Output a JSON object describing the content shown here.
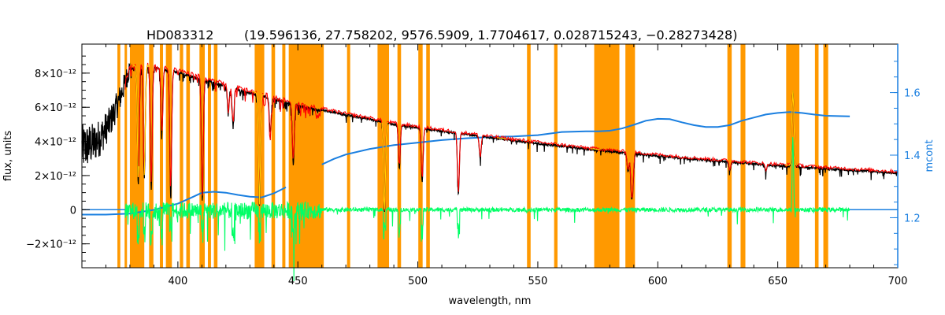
{
  "chart_data": {
    "type": "line",
    "title_object": "HD083312",
    "title_params": "(19.596136, 27.758202, 9576.5909, 1.7704617, 0.028715243, −0.28273428)",
    "xlabel": "wavelength, nm",
    "ylabel": "flux, units",
    "y2label": "mcont",
    "xlim": [
      360,
      700
    ],
    "ylim": [
      -3.4e-12,
      9.7e-12
    ],
    "y2lim": [
      1.04,
      1.755
    ],
    "x_ticks": [
      400,
      450,
      500,
      550,
      600,
      650,
      700
    ],
    "y_ticks": [
      {
        "value": -2e-12,
        "label": "−2×10⁻¹²"
      },
      {
        "value": 0,
        "label": "0"
      },
      {
        "value": 2e-12,
        "label": "2×10⁻¹²"
      },
      {
        "value": 4e-12,
        "label": "4×10⁻¹²"
      },
      {
        "value": 6e-12,
        "label": "6×10⁻¹²"
      },
      {
        "value": 8e-12,
        "label": "8×10⁻¹²"
      }
    ],
    "y2_ticks": [
      1.2,
      1.4,
      1.6
    ],
    "colors": {
      "observed": "#000000",
      "model": "#ff0000",
      "model_highlight": "#ffd000",
      "residual": "#00ff66",
      "mcont": "#1a7fe0",
      "masks": "#ff9900"
    },
    "masked_regions": [
      [
        374.8,
        376.0
      ],
      [
        377.8,
        378.8
      ],
      [
        380.0,
        386.0
      ],
      [
        388.0,
        389.8
      ],
      [
        392.5,
        393.8
      ],
      [
        395.0,
        397.5
      ],
      [
        400.8,
        402.2
      ],
      [
        403.5,
        405.0
      ],
      [
        409.0,
        411.2
      ],
      [
        412.5,
        413.8
      ],
      [
        415.0,
        416.5
      ],
      [
        432.0,
        436.0
      ],
      [
        439.0,
        440.5
      ],
      [
        443.5,
        444.8
      ],
      [
        446.2,
        460.8
      ],
      [
        470.5,
        471.8
      ],
      [
        483.2,
        488.0
      ],
      [
        491.5,
        493.0
      ],
      [
        500.2,
        502.0
      ],
      [
        503.5,
        505.0
      ],
      [
        545.5,
        547.0
      ],
      [
        556.8,
        558.2
      ],
      [
        573.5,
        584.0
      ],
      [
        586.5,
        590.5
      ],
      [
        629.0,
        630.8
      ],
      [
        634.5,
        636.5
      ],
      [
        653.5,
        659.0
      ],
      [
        665.5,
        667.0
      ],
      [
        669.0,
        671.0
      ]
    ],
    "mcont_segments": [
      {
        "x": [
          360,
          370,
          380,
          390,
          400,
          405,
          410,
          415,
          420,
          425,
          430,
          435,
          440,
          445
        ],
        "y": [
          1.21,
          1.21,
          1.213,
          1.225,
          1.245,
          1.262,
          1.28,
          1.283,
          1.28,
          1.273,
          1.267,
          1.265,
          1.278,
          1.297
        ]
      },
      {
        "x": [
          460,
          465,
          470,
          480,
          490,
          500,
          510,
          520,
          530,
          540,
          550,
          560,
          570,
          575,
          580,
          585,
          590,
          595,
          600,
          605,
          610,
          615,
          620,
          625,
          630,
          635,
          640,
          645,
          650,
          655,
          660,
          665,
          670,
          675,
          680
        ],
        "y": [
          1.37,
          1.388,
          1.402,
          1.42,
          1.432,
          1.44,
          1.448,
          1.454,
          1.458,
          1.46,
          1.464,
          1.474,
          1.476,
          1.476,
          1.478,
          1.485,
          1.497,
          1.51,
          1.516,
          1.515,
          1.505,
          1.496,
          1.49,
          1.49,
          1.496,
          1.51,
          1.52,
          1.53,
          1.535,
          1.538,
          1.535,
          1.53,
          1.526,
          1.525,
          1.524
        ]
      }
    ],
    "continuum_flux": {
      "x": [
        360,
        365,
        368,
        372,
        376,
        380,
        385,
        390,
        400,
        410,
        420,
        430,
        440,
        450,
        460,
        470,
        480,
        490,
        500,
        510,
        520,
        530,
        540,
        550,
        560,
        570,
        580,
        590,
        600,
        610,
        620,
        630,
        640,
        650,
        660,
        670,
        680,
        690,
        700
      ],
      "y": [
        3.6e-12,
        3.9e-12,
        4.3e-12,
        5.2e-12,
        6.6e-12,
        8.3e-12,
        8.5e-12,
        8.4e-12,
        8.1e-12,
        7.7e-12,
        7.3e-12,
        6.9e-12,
        6.55e-12,
        6.15e-12,
        5.85e-12,
        5.55e-12,
        5.3e-12,
        5e-12,
        4.8e-12,
        4.6e-12,
        4.42e-12,
        4.22e-12,
        4.05e-12,
        3.88e-12,
        3.72e-12,
        3.55e-12,
        3.42e-12,
        3.28e-12,
        3.15e-12,
        3.02e-12,
        2.9e-12,
        2.8e-12,
        2.68e-12,
        2.58e-12,
        2.5e-12,
        2.4e-12,
        2.32e-12,
        2.24e-12,
        2.15e-12
      ]
    },
    "absorption_lines": [
      {
        "x": 383.5,
        "depth": 6.8e-12
      },
      {
        "x": 386.0,
        "depth": 6.5e-12
      },
      {
        "x": 388.9,
        "depth": 7e-12
      },
      {
        "x": 393.3,
        "depth": 3.8e-12
      },
      {
        "x": 397.0,
        "depth": 7.2e-12
      },
      {
        "x": 410.2,
        "depth": 7e-12
      },
      {
        "x": 421.0,
        "depth": 1.5e-12
      },
      {
        "x": 423.0,
        "depth": 2.2e-12
      },
      {
        "x": 434.0,
        "depth": 6.5e-12
      },
      {
        "x": 438.5,
        "depth": 2e-12
      },
      {
        "x": 448.1,
        "depth": 3.5e-12
      },
      {
        "x": 486.1,
        "depth": 5.3e-12
      },
      {
        "x": 492.3,
        "depth": 2.5e-12
      },
      {
        "x": 501.8,
        "depth": 3.1e-12
      },
      {
        "x": 516.9,
        "depth": 3.6e-12
      },
      {
        "x": 526.0,
        "depth": 1.3e-12
      },
      {
        "x": 587.6,
        "depth": 1.1e-12
      },
      {
        "x": 589.0,
        "depth": 2e-12
      },
      {
        "x": 589.6,
        "depth": 1.6e-12
      },
      {
        "x": 630.0,
        "depth": 5e-13
      },
      {
        "x": 645.0,
        "depth": 4e-13
      }
    ],
    "emission_lines": [
      {
        "x": 656.3,
        "height": 4.4e-12
      }
    ]
  }
}
